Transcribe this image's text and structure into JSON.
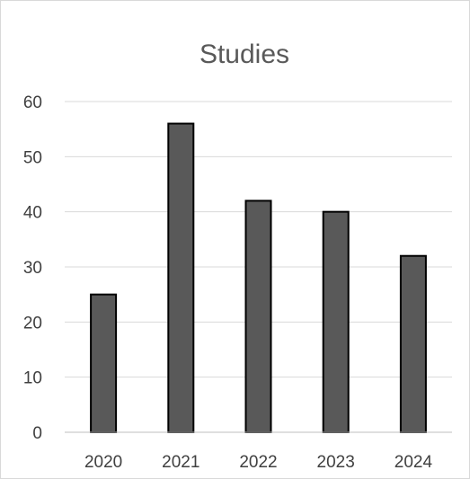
{
  "chart_data": {
    "type": "bar",
    "title": "Studies",
    "xlabel": "",
    "ylabel": "",
    "categories": [
      "2020",
      "2021",
      "2022",
      "2023",
      "2024"
    ],
    "values": [
      25,
      56,
      42,
      40,
      32
    ],
    "ylim": [
      0,
      60
    ],
    "yticks": [
      "0",
      "10",
      "20",
      "30",
      "40",
      "50",
      "60"
    ],
    "grid": true,
    "legend": "none",
    "colors": {
      "bar_fill": "#595959",
      "bar_stroke": "#000000",
      "grid": "#d9d9d9",
      "axis": "#bfbfbf",
      "text": "#404040",
      "title": "#595959",
      "border": "#d9d9d9"
    }
  }
}
